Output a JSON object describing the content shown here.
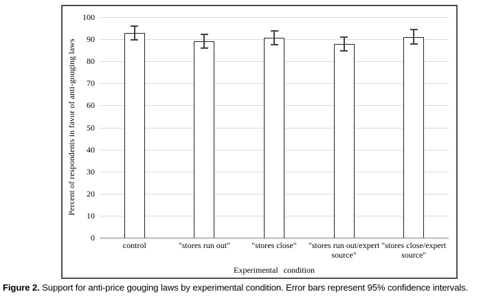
{
  "figure": {
    "caption_label": "Figure 2.",
    "caption_text": " Support for anti-price gouging laws by experimental condition. Error bars represent 95% confidence intervals."
  },
  "chart_data": {
    "type": "bar",
    "title": "",
    "categories": [
      "control",
      "\"stores run out\"",
      "\"stores close\"",
      "\"stores run out/expert\nsource\"",
      "\"stores close/expert\nsource\""
    ],
    "values": [
      92.9,
      89.1,
      90.7,
      87.8,
      91.1
    ],
    "error_bars_95ci": [
      3.2,
      3.0,
      3.1,
      3.2,
      3.3
    ],
    "xlabel": "Experimental condition",
    "ylabel": "Percent of respondents in favor of anti-gouging laws",
    "ylim": [
      0,
      100
    ],
    "yticks": [
      0,
      10,
      20,
      30,
      40,
      50,
      60,
      70,
      80,
      90,
      100
    ],
    "grid": "horizontal",
    "legend": "none",
    "colors": {
      "bar_fill": "#ffffff",
      "bar_border": "#1f1f1f",
      "error_bar": "#3f3f3f",
      "gridline": "#d9d9d9",
      "axis_line": "#808080",
      "frame_border": "#4d4d4d",
      "text": "#000000"
    }
  }
}
